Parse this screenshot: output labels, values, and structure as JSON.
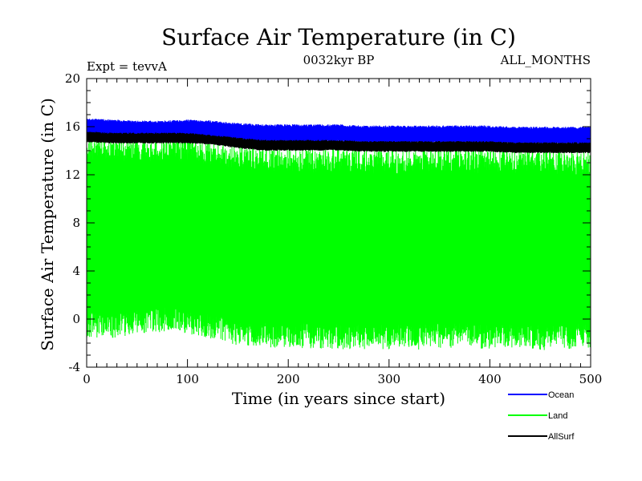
{
  "chart_data": {
    "type": "line",
    "title": "Surface Air Temperature (in C)",
    "subtitle_left": "Expt = tevvA",
    "subtitle_center": "0032kyr BP",
    "subtitle_right": "ALL_MONTHS",
    "xlabel": "Time (in years since start)",
    "ylabel": "Surface Air Temperature (in C)",
    "xlim": [
      0,
      500
    ],
    "ylim": [
      -4,
      20
    ],
    "x_ticks": [
      0,
      100,
      200,
      300,
      400,
      500
    ],
    "y_ticks": [
      -4,
      0,
      4,
      8,
      12,
      16,
      20
    ],
    "x_tick_labels": [
      "0",
      "100",
      "200",
      "300",
      "400",
      "500"
    ],
    "y_tick_labels": [
      "-4",
      "0",
      "4",
      "8",
      "12",
      "16",
      "20"
    ],
    "grid": false,
    "legend_position": "bottom-right",
    "series": [
      {
        "name": "Ocean",
        "color": "#0000ff",
        "description": "monthly values oscillating in a narrow band",
        "x": [
          0,
          25,
          50,
          75,
          100,
          125,
          150,
          175,
          200,
          225,
          250,
          275,
          300,
          325,
          350,
          375,
          400,
          425,
          450,
          475,
          500
        ],
        "band_low": [
          15.2,
          15.1,
          15.0,
          15.0,
          15.1,
          15.0,
          14.9,
          14.7,
          14.7,
          14.7,
          14.7,
          14.6,
          14.6,
          14.6,
          14.6,
          14.6,
          14.6,
          14.5,
          14.5,
          14.5,
          14.5
        ],
        "band_high": [
          16.7,
          16.6,
          16.5,
          16.5,
          16.6,
          16.5,
          16.3,
          16.2,
          16.2,
          16.2,
          16.2,
          16.1,
          16.1,
          16.1,
          16.1,
          16.1,
          16.1,
          16.0,
          16.0,
          16.0,
          16.0
        ]
      },
      {
        "name": "Land",
        "color": "#00ff00",
        "description": "monthly values with large seasonal cycle",
        "x": [
          0,
          25,
          50,
          75,
          100,
          125,
          150,
          175,
          200,
          225,
          250,
          275,
          300,
          325,
          350,
          375,
          400,
          425,
          450,
          475,
          500
        ],
        "band_low": [
          -1.5,
          -1.6,
          -1.3,
          -1.1,
          -1.2,
          -1.7,
          -2.2,
          -2.4,
          -2.4,
          -2.5,
          -2.5,
          -2.5,
          -2.5,
          -2.6,
          -2.4,
          -2.4,
          -2.5,
          -2.4,
          -2.6,
          -2.5,
          -2.4
        ],
        "band_high": [
          15.3,
          15.1,
          15.1,
          15.2,
          15.1,
          14.9,
          14.6,
          14.4,
          14.3,
          14.3,
          14.3,
          14.2,
          14.2,
          14.2,
          14.3,
          14.2,
          14.2,
          14.1,
          14.2,
          14.1,
          14.1
        ]
      },
      {
        "name": "AllSurf",
        "color": "#000000",
        "description": "monthly values oscillating in a narrow band",
        "x": [
          0,
          25,
          50,
          75,
          100,
          125,
          150,
          175,
          200,
          225,
          250,
          275,
          300,
          325,
          350,
          375,
          400,
          425,
          450,
          475,
          500
        ],
        "band_low": [
          14.7,
          14.6,
          14.6,
          14.6,
          14.6,
          14.5,
          14.2,
          14.0,
          14.0,
          14.0,
          14.0,
          13.9,
          13.9,
          13.9,
          13.9,
          13.9,
          13.9,
          13.8,
          13.8,
          13.8,
          13.8
        ],
        "band_high": [
          15.6,
          15.5,
          15.5,
          15.5,
          15.5,
          15.3,
          15.1,
          14.9,
          14.9,
          14.9,
          14.9,
          14.8,
          14.8,
          14.8,
          14.8,
          14.8,
          14.8,
          14.7,
          14.7,
          14.7,
          14.7
        ]
      }
    ]
  }
}
